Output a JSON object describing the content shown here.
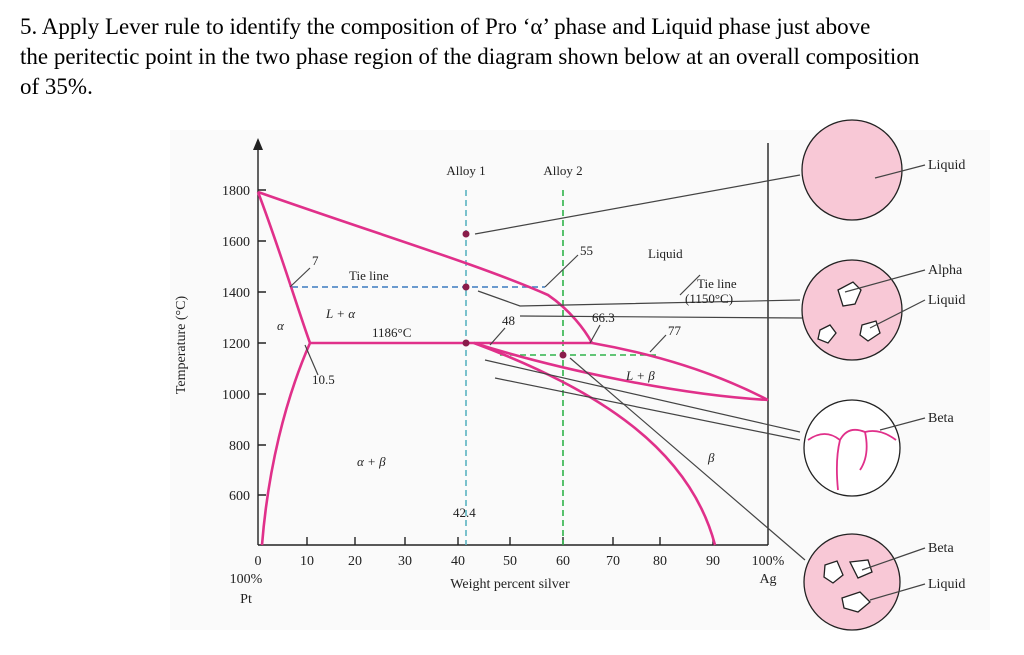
{
  "question": {
    "lines": [
      "5. Apply Lever rule to identify the composition of Pro ‘α’ phase  and Liquid phase just above",
      "the peritectic point in the two phase region of the diagram shown below at an overall composition",
      "of 35%."
    ]
  },
  "figure": {
    "y_axis_title": "Temperature (°C)",
    "x_axis_title": "Weight percent silver",
    "y_ticks": [
      "1800",
      "1600",
      "1400",
      "1200",
      "1000",
      "800",
      "600"
    ],
    "x_ticks": [
      "0",
      "10",
      "20",
      "30",
      "40",
      "50",
      "60",
      "70",
      "80",
      "90",
      "100%"
    ],
    "x_left_end": [
      "100%",
      "Pt"
    ],
    "x_right_end": "Ag",
    "alloys": [
      "Alloy 1",
      "Alloy 2"
    ],
    "region_labels": {
      "liquid": "Liquid",
      "l_alpha": "L + α",
      "alpha": "α",
      "l_beta": "L + β",
      "beta": "β",
      "alpha_beta": "α + β"
    },
    "tie_line_1": "Tie line",
    "tie_line_2": [
      "Tie line",
      "(1150°C)"
    ],
    "peritectic_temp": "1186°C",
    "compositions": [
      "7",
      "10.5",
      "42.4",
      "48",
      "55",
      "66.3",
      "77"
    ],
    "microstructures": [
      [
        "Liquid"
      ],
      [
        "Alpha",
        "Liquid"
      ],
      [
        "Beta"
      ],
      [
        "Beta",
        "Liquid"
      ]
    ]
  }
}
